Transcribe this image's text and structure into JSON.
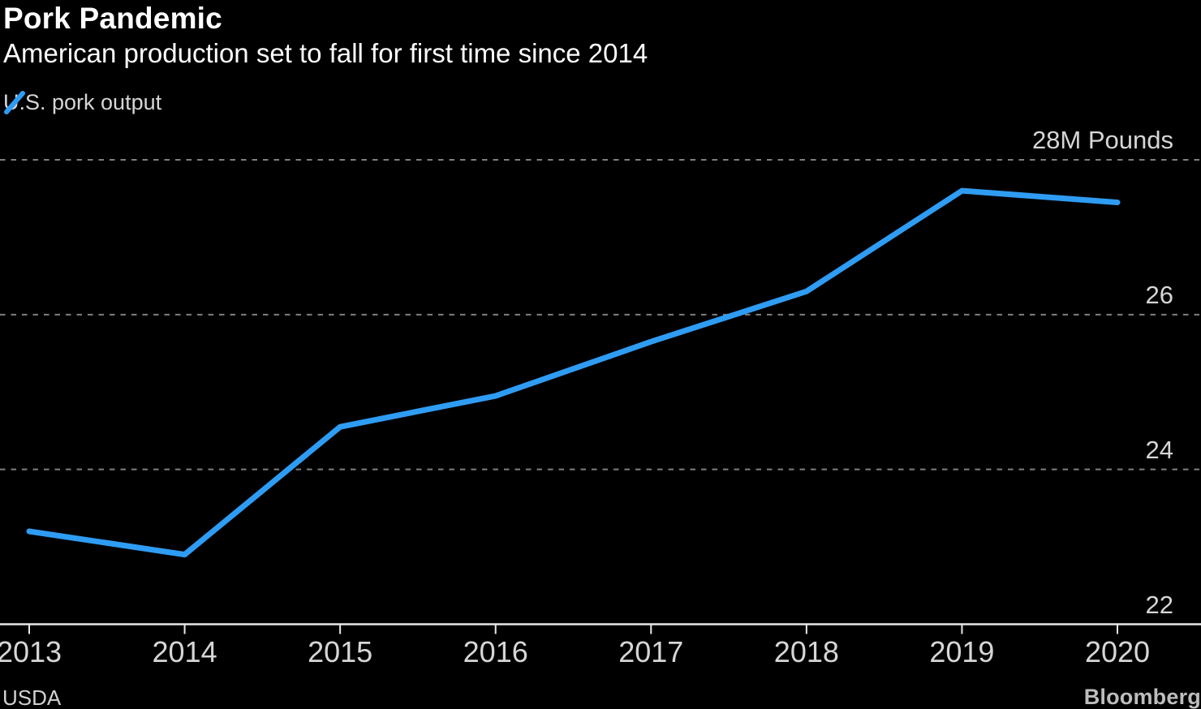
{
  "header": {
    "title": "Pork Pandemic",
    "subtitle": "American production set to fall for first time since 2014",
    "legend": [
      {
        "label": "U.S. pork output",
        "swatch_icon": "diagonal-line-swatch",
        "color": "#2f9cf4"
      }
    ]
  },
  "chart_data": {
    "type": "line",
    "title": "Pork Pandemic",
    "subtitle": "American production set to fall for first time since 2014",
    "categories": [
      "2013",
      "2014",
      "2015",
      "2016",
      "2017",
      "2018",
      "2019",
      "2020"
    ],
    "series": [
      {
        "name": "U.S. pork output",
        "color": "#2f9cf4",
        "values": [
          23.2,
          22.9,
          24.55,
          24.95,
          25.65,
          26.3,
          27.6,
          27.45
        ]
      }
    ],
    "xlabel": "",
    "ylabel": "Pounds",
    "ylim": [
      22,
      28
    ],
    "y_axis": {
      "side": "right",
      "ticks": [
        {
          "value": 28,
          "label": "28M Pounds"
        },
        {
          "value": 26,
          "label": "26"
        },
        {
          "value": 24,
          "label": "24"
        },
        {
          "value": 22,
          "label": "22"
        }
      ]
    },
    "grid": "horizontal-dashed",
    "legend_position": "top-left",
    "colors": {
      "background": "#000000",
      "line": "#2f9cf4",
      "gridline": "#7f7f7f",
      "axis": "#e8e8e8",
      "text": "#d6d6d6"
    }
  },
  "footer": {
    "source": "USDA",
    "brand": "Bloomberg"
  }
}
